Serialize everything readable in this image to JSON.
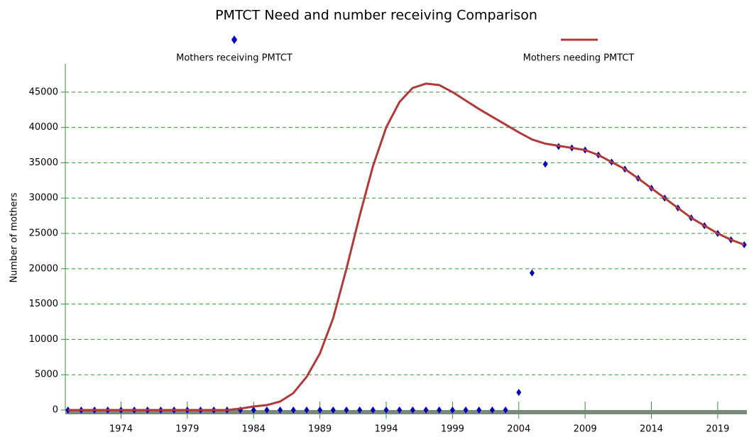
{
  "chart_data": {
    "type": "line",
    "title": "PMTCT Need and number receiving Comparison",
    "y_label": "Number of mothers",
    "x": [
      1970,
      1971,
      1972,
      1973,
      1974,
      1975,
      1976,
      1977,
      1978,
      1979,
      1980,
      1981,
      1982,
      1983,
      1984,
      1985,
      1986,
      1987,
      1988,
      1989,
      1990,
      1991,
      1992,
      1993,
      1994,
      1995,
      1996,
      1997,
      1998,
      1999,
      2000,
      2001,
      2002,
      2003,
      2004,
      2005,
      2006,
      2007,
      2008,
      2009,
      2010,
      2011,
      2012,
      2013,
      2014,
      2015,
      2016,
      2017,
      2018,
      2019,
      2020,
      2021
    ],
    "series": [
      {
        "name": "Mothers receiving PMTCT",
        "color": "#0000c0",
        "marker": "diamond",
        "values": [
          0,
          0,
          0,
          0,
          0,
          0,
          0,
          0,
          0,
          0,
          0,
          0,
          0,
          0,
          0,
          0,
          0,
          0,
          0,
          0,
          0,
          0,
          0,
          0,
          0,
          0,
          0,
          0,
          0,
          0,
          0,
          0,
          0,
          0,
          2500,
          19400,
          34800,
          37300,
          37100,
          36800,
          36100,
          35100,
          34100,
          32800,
          31400,
          30000,
          28600,
          27200,
          26100,
          25000,
          24100,
          23400
        ]
      },
      {
        "name": "Mothers needing PMTCT",
        "color": "#b03a3a",
        "marker": "line",
        "values": [
          0,
          0,
          0,
          0,
          0,
          0,
          0,
          0,
          0,
          0,
          0,
          0,
          0,
          200,
          500,
          700,
          1200,
          2400,
          4700,
          8000,
          13000,
          20000,
          27500,
          34500,
          40000,
          43600,
          45600,
          46200,
          46000,
          45000,
          43800,
          42600,
          41500,
          40400,
          39300,
          38300,
          37700,
          37400,
          37100,
          36800,
          36100,
          35100,
          34100,
          32800,
          31400,
          30000,
          28600,
          27200,
          26100,
          25000,
          24100,
          23400
        ]
      }
    ],
    "xlim": [
      1969.8,
      2021.2
    ],
    "xticks": [
      1974,
      1979,
      1984,
      1989,
      1994,
      1999,
      2004,
      2009,
      2014,
      2019
    ],
    "ylim": [
      0,
      49000
    ],
    "yticks": [
      0,
      5000,
      10000,
      15000,
      20000,
      25000,
      30000,
      35000,
      40000,
      45000
    ],
    "grid": true
  }
}
